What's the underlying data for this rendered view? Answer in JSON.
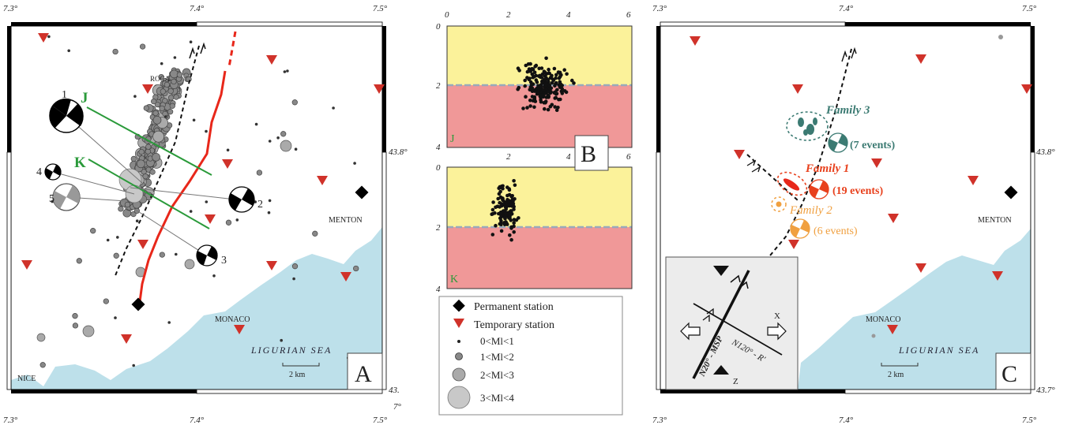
{
  "panel_a": {
    "letter": "A",
    "ticks_top": [
      "7.3°",
      "7.4°",
      "7.5°"
    ],
    "ticks_bottom": [
      "7.3°",
      "7.4°",
      "7.5°"
    ],
    "lat_right_top": "43.8°",
    "lat_right_bottom": "43.",
    "town_roca": "ROCA",
    "town_menton": "MENTON",
    "town_monaco": "MONACO",
    "town_nice": "NICE",
    "sea": "LIGURIAN SEA",
    "scale": "2 km",
    "profile_j": "J",
    "profile_k": "K",
    "mech": [
      "1",
      "2",
      "3",
      "4",
      "5"
    ]
  },
  "panel_b": {
    "letter": "B",
    "ticks_x": [
      "0",
      "2",
      "4",
      "6"
    ],
    "ticks_y": [
      "0",
      "2",
      "4"
    ],
    "sec_j": "J",
    "sec_k": "K",
    "bottom_lat": "7°"
  },
  "legend": {
    "permanent": "Permanent station",
    "temporary": "Temporary station",
    "m0": "0<Ml<1",
    "m1": "1<Ml<2",
    "m2": "2<Ml<3",
    "m3": "3<Ml<4"
  },
  "panel_c": {
    "letter": "C",
    "ticks_top": [
      "7.3°",
      "7.4°",
      "7.5°"
    ],
    "ticks_bottom": [
      "7.3°",
      "7.4°",
      "7.5°"
    ],
    "lat_right_top": "43.8°",
    "lat_right_bottom": "43.7°",
    "town_menton": "MENTON",
    "town_monaco": "MONACO",
    "sea": "LIGURIAN SEA",
    "scale": "2 km",
    "family1": "Family 1",
    "family1_n": "(19 events)",
    "family2": "Family 2",
    "family2_n": "(6 events)",
    "family3": "Family 3",
    "family3_n": "(7 events)",
    "inset_x": "X",
    "inset_z": "Z",
    "inset_n20": "N20° - MSP",
    "inset_n120": "N120° - R'"
  },
  "colors": {
    "sea": "#bde0ea",
    "shallow": "#fbf29a",
    "deep": "#f09898",
    "fault": "#e8271a",
    "profile": "#2a9a3a",
    "family1": "#e8401c",
    "family2": "#f0a040",
    "family3": "#3b7a72"
  }
}
